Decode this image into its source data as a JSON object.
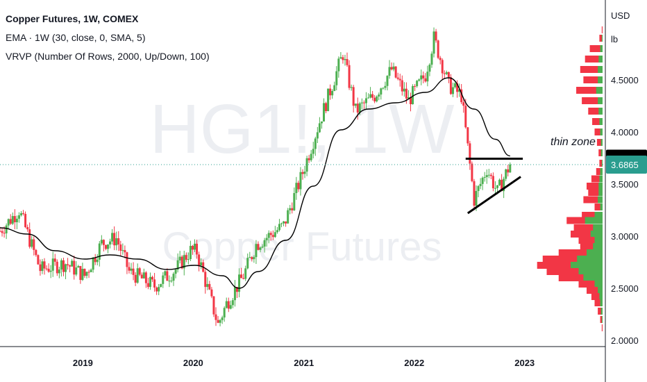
{
  "legend": {
    "title": "Copper Futures, 1W, COMEX",
    "ema": "EMA · 1W (30, close, 0, SMA, 5)",
    "vrvp": "VRVP (Number Of Rows, 2000, Up/Down, 100)"
  },
  "watermark": {
    "symbol": "HG1!, 1W",
    "name": "Copper Futures"
  },
  "annotation": "thin zone",
  "colors": {
    "up": "#4caf50",
    "down": "#f23645",
    "ema": "#000000",
    "last_price_bg": "#2a9d8f",
    "marker_bg": "#000000"
  },
  "chart_data": {
    "type": "candlestick",
    "currency": "USD",
    "unit": "lb",
    "x_ticks": [
      "2019",
      "2020",
      "2021",
      "2022",
      "2023"
    ],
    "x_range": [
      "2018-04-02",
      "2023-09-25"
    ],
    "y_range": [
      2.0,
      5.0
    ],
    "y_ticks": [
      "2.0000",
      "2.5000",
      "3.0000",
      "3.5000",
      "4.0000",
      "4.5000"
    ],
    "last_price": "3.6865",
    "marker_price": "3.7430",
    "price_path": [
      [
        "2018-04-02",
        3.05
      ],
      [
        "2018-06-04",
        3.25
      ],
      [
        "2018-08-13",
        2.68
      ],
      [
        "2018-11-05",
        2.74
      ],
      [
        "2019-01-07",
        2.62
      ],
      [
        "2019-03-04",
        2.93
      ],
      [
        "2019-04-22",
        2.98
      ],
      [
        "2019-06-03",
        2.66
      ],
      [
        "2019-08-26",
        2.52
      ],
      [
        "2019-11-04",
        2.68
      ],
      [
        "2019-12-23",
        2.86
      ],
      [
        "2020-01-13",
        2.85
      ],
      [
        "2020-03-23",
        2.15
      ],
      [
        "2020-04-20",
        2.35
      ],
      [
        "2020-06-15",
        2.62
      ],
      [
        "2020-07-27",
        2.92
      ],
      [
        "2020-10-26",
        3.1
      ],
      [
        "2020-12-21",
        3.55
      ],
      [
        "2021-02-22",
        4.1
      ],
      [
        "2021-05-10",
        4.75
      ],
      [
        "2021-06-21",
        4.2
      ],
      [
        "2021-08-23",
        4.35
      ],
      [
        "2021-10-18",
        4.6
      ],
      [
        "2021-12-13",
        4.3
      ],
      [
        "2022-02-07",
        4.55
      ],
      [
        "2022-03-07",
        4.9
      ],
      [
        "2022-04-25",
        4.45
      ],
      [
        "2022-06-06",
        4.35
      ],
      [
        "2022-07-18",
        3.35
      ],
      [
        "2022-08-29",
        3.65
      ],
      [
        "2022-10-03",
        3.42
      ],
      [
        "2022-11-14",
        3.69
      ]
    ],
    "ema_path": [
      [
        "2018-04-02",
        3.08
      ],
      [
        "2018-07-02",
        3.02
      ],
      [
        "2018-10-01",
        2.86
      ],
      [
        "2019-01-07",
        2.78
      ],
      [
        "2019-04-01",
        2.82
      ],
      [
        "2019-07-01",
        2.78
      ],
      [
        "2019-10-07",
        2.68
      ],
      [
        "2020-01-06",
        2.72
      ],
      [
        "2020-04-06",
        2.62
      ],
      [
        "2020-06-01",
        2.5
      ],
      [
        "2020-08-03",
        2.66
      ],
      [
        "2020-11-02",
        2.96
      ],
      [
        "2021-02-01",
        3.48
      ],
      [
        "2021-05-03",
        4.02
      ],
      [
        "2021-08-02",
        4.22
      ],
      [
        "2021-11-01",
        4.28
      ],
      [
        "2022-02-07",
        4.38
      ],
      [
        "2022-04-25",
        4.52
      ],
      [
        "2022-07-18",
        4.22
      ],
      [
        "2022-09-26",
        3.93
      ],
      [
        "2022-11-14",
        3.77
      ]
    ],
    "drawings": [
      {
        "name": "resistance-line",
        "points": [
          [
            "2022-06-20",
            3.743
          ],
          [
            "2022-12-26",
            3.743
          ]
        ]
      },
      {
        "name": "rising-trendline",
        "points": [
          [
            "2022-06-27",
            3.22
          ],
          [
            "2022-12-19",
            3.57
          ]
        ]
      }
    ],
    "volume_profile": {
      "max_price": 5.0,
      "min_price": 2.1,
      "max_volume": 1.0,
      "levels": [
        [
          4.98,
          0.01,
          0.0
        ],
        [
          4.9,
          0.04,
          0.01
        ],
        [
          4.8,
          0.16,
          0.03
        ],
        [
          4.7,
          0.22,
          0.05
        ],
        [
          4.6,
          0.28,
          0.06
        ],
        [
          4.5,
          0.24,
          0.06
        ],
        [
          4.4,
          0.33,
          0.08
        ],
        [
          4.3,
          0.26,
          0.06
        ],
        [
          4.2,
          0.18,
          0.05
        ],
        [
          4.1,
          0.13,
          0.04
        ],
        [
          4.0,
          0.1,
          0.03
        ],
        [
          3.9,
          0.07,
          0.02
        ],
        [
          3.8,
          0.05,
          0.02
        ],
        [
          3.7,
          0.04,
          0.01
        ],
        [
          3.62,
          0.08,
          0.03
        ],
        [
          3.55,
          0.14,
          0.04
        ],
        [
          3.48,
          0.2,
          0.05
        ],
        [
          3.42,
          0.18,
          0.05
        ],
        [
          3.35,
          0.24,
          0.06
        ],
        [
          3.28,
          0.1,
          0.03
        ],
        [
          3.2,
          0.26,
          0.1
        ],
        [
          3.15,
          0.45,
          0.22
        ],
        [
          3.08,
          0.36,
          0.12
        ],
        [
          3.02,
          0.4,
          0.15
        ],
        [
          2.96,
          0.3,
          0.1
        ],
        [
          2.9,
          0.28,
          0.12
        ],
        [
          2.84,
          0.55,
          0.2
        ],
        [
          2.78,
          0.75,
          0.32
        ],
        [
          2.72,
          0.82,
          0.4
        ],
        [
          2.66,
          0.7,
          0.3
        ],
        [
          2.6,
          0.55,
          0.24
        ],
        [
          2.54,
          0.3,
          0.1
        ],
        [
          2.48,
          0.2,
          0.06
        ],
        [
          2.42,
          0.14,
          0.04
        ],
        [
          2.36,
          0.1,
          0.03
        ],
        [
          2.28,
          0.06,
          0.02
        ],
        [
          2.2,
          0.03,
          0.01
        ],
        [
          2.12,
          0.01,
          0.0
        ]
      ]
    }
  }
}
